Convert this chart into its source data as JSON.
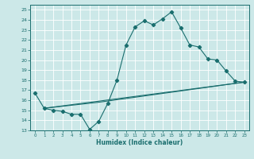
{
  "xlabel": "Humidex (Indice chaleur)",
  "bg_color": "#cce8e8",
  "grid_color": "#ffffff",
  "line_color": "#1a6e6e",
  "xlim": [
    -0.5,
    23.5
  ],
  "ylim": [
    13,
    25.5
  ],
  "xticks": [
    0,
    1,
    2,
    3,
    4,
    5,
    6,
    7,
    8,
    9,
    10,
    11,
    12,
    13,
    14,
    15,
    16,
    17,
    18,
    19,
    20,
    21,
    22,
    23
  ],
  "yticks": [
    13,
    14,
    15,
    16,
    17,
    18,
    19,
    20,
    21,
    22,
    23,
    24,
    25
  ],
  "curve1_x": [
    0,
    1,
    2,
    3,
    4,
    5,
    6,
    7,
    8,
    9,
    10,
    11,
    12,
    13,
    14,
    15,
    16,
    17,
    18,
    19,
    20,
    21,
    22,
    23
  ],
  "curve1_y": [
    16.7,
    15.2,
    15.0,
    14.9,
    14.6,
    14.6,
    13.1,
    13.9,
    15.7,
    18.0,
    21.5,
    23.3,
    23.9,
    23.5,
    24.1,
    24.8,
    23.2,
    21.5,
    21.3,
    20.1,
    20.0,
    18.9,
    17.9,
    17.8
  ],
  "line2_x": [
    1,
    23
  ],
  "line2_y": [
    15.2,
    17.8
  ],
  "line3_x": [
    1,
    7,
    23
  ],
  "line3_y": [
    15.2,
    15.8,
    17.8
  ]
}
